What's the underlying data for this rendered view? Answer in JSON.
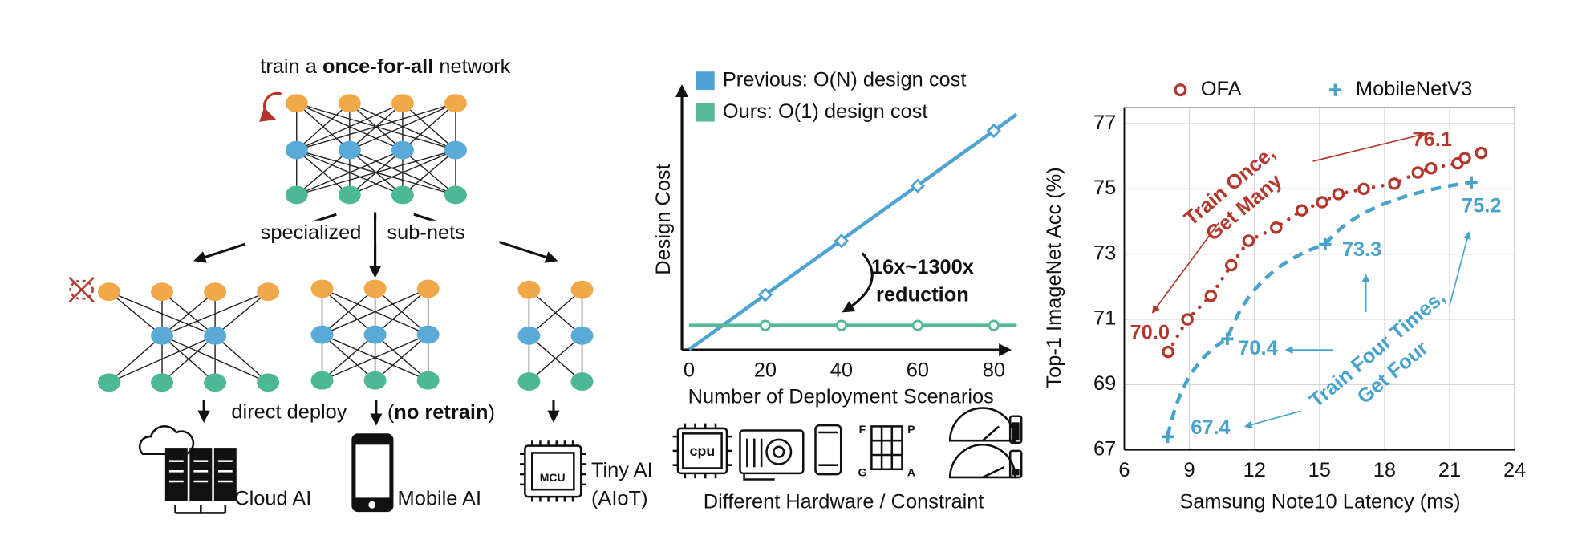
{
  "diagram": {
    "title_prefix": "train a ",
    "title_bold": "once-for-all",
    "title_suffix": " network",
    "split_left": "specialized",
    "split_right": "sub-nets",
    "deploy": "direct deploy",
    "deploy_open": "(",
    "deploy_bold": "no retrain",
    "deploy_close": ")",
    "cloud": "Cloud AI",
    "mobile": "Mobile AI",
    "tiny": "Tiny AI",
    "tiny_sub": "(AIoT)",
    "mcu": "MCU"
  },
  "hardware": {
    "caption": "Different Hardware / Constraint",
    "cpu": "cpu",
    "fpga": [
      "F",
      "P",
      "G",
      "A"
    ]
  },
  "chart_data": [
    {
      "type": "line",
      "xlabel": "Number of Deployment Scenarios",
      "ylabel": "Design Cost",
      "annotation": [
        "16x~1300x",
        "reduction"
      ],
      "x": [
        20,
        40,
        60,
        80
      ],
      "series": [
        {
          "name": "Previous: O(N) design cost",
          "color": "#4ea3d2",
          "values": [
            21.8,
            43.1,
            64.9,
            86.7
          ]
        },
        {
          "name": "Ours: O(1) design cost",
          "color": "#52b896",
          "values": [
            9.7,
            9.7,
            9.7,
            9.7
          ]
        }
      ],
      "xlim": [
        0,
        84
      ],
      "xticks": [
        0,
        20,
        40,
        60,
        80
      ],
      "ylim": [
        0,
        100
      ]
    },
    {
      "type": "scatter",
      "xlabel": "Samsung Note10 Latency (ms)",
      "ylabel": "Top-1 ImageNet Acc (%)",
      "annotations": [
        [
          "Train Once,",
          "Get Many"
        ],
        [
          "Train Four Times,",
          "Get Four"
        ]
      ],
      "series": [
        {
          "name": "OFA",
          "color": "#b5362b",
          "marker": "circle",
          "x": [
            8.02,
            8.91,
            9.99,
            10.93,
            11.73,
            13.0,
            14.18,
            15.12,
            15.87,
            17.04,
            18.45,
            19.53,
            20.14,
            21.37,
            21.7,
            22.45
          ],
          "values": [
            70.0,
            71.0,
            71.72,
            72.66,
            73.41,
            73.81,
            74.34,
            74.59,
            74.84,
            75.0,
            75.16,
            75.5,
            75.63,
            75.78,
            75.94,
            76.1
          ],
          "value_labels": [
            "70.0",
            null,
            null,
            null,
            null,
            null,
            null,
            null,
            null,
            null,
            null,
            null,
            null,
            null,
            null,
            "76.1"
          ]
        },
        {
          "name": "MobileNetV3",
          "color": "#48a3cc",
          "marker": "plus",
          "x": [
            8.0,
            10.75,
            15.26,
            22.0
          ],
          "values": [
            67.4,
            70.4,
            73.3,
            75.2
          ],
          "value_labels": [
            "67.4",
            "70.4",
            "73.3",
            "75.2"
          ]
        }
      ],
      "xlim": [
        6,
        24
      ],
      "xticks": [
        6,
        9,
        12,
        15,
        18,
        21,
        24
      ],
      "ylim": [
        67,
        77.5
      ],
      "yticks": [
        67,
        69,
        71,
        73,
        75,
        77
      ],
      "grid": true
    }
  ]
}
